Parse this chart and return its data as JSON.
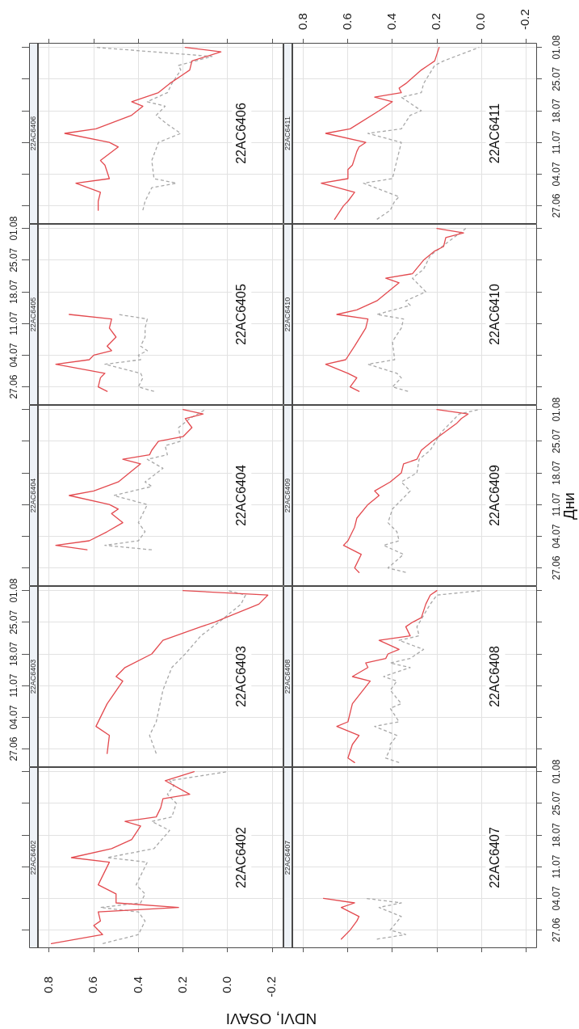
{
  "chart_data": [
    {
      "type": "line",
      "orientation": "horizontal",
      "title": "22AC6406",
      "annotations": [
        "22AC6406"
      ],
      "xlim": [
        0.85,
        -0.25
      ],
      "xticks": [
        {
          "value": 0.8,
          "label": null
        },
        {
          "value": 0.6,
          "label": null
        },
        {
          "value": 0.4,
          "label": null
        },
        {
          "value": 0.2,
          "label": null
        },
        {
          "value": 0,
          "label": null
        },
        {
          "value": -0.2,
          "label": null
        }
      ],
      "ylim": [
        "--06-23",
        "--08-02"
      ],
      "yticks": [
        {
          "value": "--06-27",
          "label": null
        },
        {
          "value": "--07-04",
          "label": null
        },
        {
          "value": "--07-11",
          "label": null
        },
        {
          "value": "--07-18",
          "label": null
        },
        {
          "value": "--07-25",
          "label": null
        },
        {
          "value": "--08-01",
          "label": null
        }
      ],
      "grid": true,
      "tick_labels": false,
      "series": [
        {
          "color": "#e34a4f",
          "x": [
            "--06-26",
            "--06-28",
            "--06-30",
            "--07-02",
            "--07-03",
            "--07-06",
            "--07-07",
            "--07-10",
            "--07-11",
            "--07-13",
            "--07-14",
            "--07-17",
            "--07-19",
            "--07-20",
            "--07-22",
            "--07-24",
            "--07-26",
            "--07-27",
            "--07-29",
            "--07-31",
            "--08-01"
          ],
          "values": [
            0.58,
            0.58,
            0.57,
            0.68,
            0.53,
            0.55,
            0.57,
            0.49,
            0.53,
            0.73,
            0.59,
            0.43,
            0.38,
            0.43,
            0.31,
            0.26,
            0.2,
            0.17,
            0.16,
            0.03,
            0.19
          ]
        },
        {
          "color": "#a8a8a8",
          "line_style": "dashed",
          "x": [
            "--06-26",
            "--06-28",
            "--07-01",
            "--07-02",
            "--07-03",
            "--07-07",
            "--07-11",
            "--07-13",
            "--07-15",
            "--07-17",
            "--07-19",
            "--07-20",
            "--07-22",
            "--07-24",
            "--07-27",
            "--07-28",
            "--07-30",
            "--08-01"
          ],
          "values": [
            0.38,
            0.37,
            0.34,
            0.23,
            0.33,
            0.34,
            0.31,
            0.21,
            0.27,
            0.32,
            0.28,
            0.36,
            0.27,
            0.25,
            0.21,
            0.22,
            0.07,
            0.59
          ]
        }
      ]
    },
    {
      "type": "line",
      "orientation": "horizontal",
      "title": "22AC6411",
      "annotations": [
        "22AC6411"
      ],
      "xlim": [
        0.85,
        -0.25
      ],
      "xticks": [
        0.8,
        0.6,
        0.4,
        0.2,
        {
          "value": 0,
          "label": "0.0"
        },
        -0.2
      ],
      "ylim": [
        "--06-23",
        "--08-02"
      ],
      "yticks": [
        {
          "value": "--06-27",
          "label": "27.06"
        },
        {
          "value": "--07-04",
          "label": "04.07"
        },
        {
          "value": "--07-11",
          "label": "11.07"
        },
        {
          "value": "--07-18",
          "label": "18.07"
        },
        {
          "value": "--07-25",
          "label": "25.07"
        },
        {
          "value": "--08-01",
          "label": "01.08"
        }
      ],
      "grid": true,
      "series": [
        {
          "color": "#e34a4f",
          "x": [
            "--06-24",
            "--06-27",
            "--06-28",
            "--06-30",
            "--07-02",
            "--07-03",
            "--07-05",
            "--07-06",
            "--07-09",
            "--07-10",
            "--07-11",
            "--07-13",
            "--07-14",
            "--07-18",
            "--07-20",
            "--07-21",
            "--07-22",
            "--07-23",
            "--07-24",
            "--07-27",
            "--07-28",
            "--07-29",
            "--08-01"
          ],
          "values": [
            0.66,
            0.62,
            0.6,
            0.57,
            0.72,
            0.6,
            0.6,
            0.58,
            0.56,
            0.55,
            0.52,
            0.7,
            0.59,
            0.46,
            0.4,
            0.48,
            0.36,
            0.37,
            0.34,
            0.27,
            0.24,
            0.21,
            0.19
          ]
        },
        {
          "color": "#a8a8a8",
          "line_style": "dashed",
          "x": [
            "--06-24",
            "--06-26",
            "--06-28",
            "--06-29",
            "--07-02",
            "--07-03",
            "--07-05",
            "--07-09",
            "--07-11",
            "--07-13",
            "--07-14",
            "--07-17",
            "--07-18",
            "--07-21",
            "--07-22",
            "--07-24",
            "--07-28",
            "--07-29",
            "--08-01"
          ],
          "values": [
            0.47,
            0.41,
            0.39,
            0.37,
            0.53,
            0.4,
            0.39,
            0.37,
            0.36,
            0.51,
            0.36,
            0.32,
            0.27,
            0.36,
            0.27,
            0.26,
            0.21,
            0.17,
            0.01
          ]
        }
      ]
    },
    {
      "type": "line",
      "orientation": "horizontal",
      "title": "22AC6405",
      "annotations": [
        "22AC6405"
      ],
      "xlim": [
        0.85,
        -0.25
      ],
      "xticks": [
        {
          "value": 0.8,
          "label": null
        },
        {
          "value": 0.6,
          "label": null
        },
        {
          "value": 0.4,
          "label": null
        },
        {
          "value": 0.2,
          "label": null
        },
        {
          "value": 0,
          "label": null
        },
        {
          "value": -0.2,
          "label": null
        }
      ],
      "ylim": [
        "--06-23",
        "--08-02"
      ],
      "yticks": [
        {
          "value": "--06-27",
          "label": "27.06"
        },
        {
          "value": "--07-04",
          "label": "04.07"
        },
        {
          "value": "--07-11",
          "label": "11.07"
        },
        {
          "value": "--07-18",
          "label": "18.07"
        },
        {
          "value": "--07-25",
          "label": "25.07"
        },
        {
          "value": "--08-01",
          "label": "01.08"
        }
      ],
      "grid": true,
      "tick_labels": "y",
      "series": [
        {
          "color": "#e34a4f",
          "x": [
            "--06-26",
            "--06-27",
            "--06-29",
            "--06-30",
            "--07-02",
            "--07-03",
            "--07-04",
            "--07-05",
            "--07-06",
            "--07-08",
            "--07-10",
            "--07-12",
            "--07-13"
          ],
          "values": [
            0.54,
            0.58,
            0.57,
            0.55,
            0.77,
            0.62,
            0.6,
            0.52,
            0.54,
            0.5,
            0.53,
            0.52,
            0.71
          ]
        },
        {
          "color": "#a8a8a8",
          "line_style": "dashed",
          "x": [
            "--06-26",
            "--06-27",
            "--06-29",
            "--06-30",
            "--07-02",
            "--07-03",
            "--07-04",
            "--07-05",
            "--07-06",
            "--07-08",
            "--07-10",
            "--07-12",
            "--07-13"
          ],
          "values": [
            0.33,
            0.4,
            0.38,
            0.39,
            0.55,
            0.39,
            0.4,
            0.36,
            0.39,
            0.37,
            0.37,
            0.36,
            0.49
          ]
        }
      ]
    },
    {
      "type": "line",
      "orientation": "horizontal",
      "title": "22AC6410",
      "annotations": [
        "22AC6410"
      ],
      "xlim": [
        0.85,
        -0.25
      ],
      "xticks": [
        {
          "value": 0.8,
          "label": null
        },
        {
          "value": 0.6,
          "label": null
        },
        {
          "value": 0.4,
          "label": null
        },
        {
          "value": 0.2,
          "label": null
        },
        {
          "value": 0,
          "label": null
        },
        {
          "value": -0.2,
          "label": null
        }
      ],
      "ylim": [
        "--06-23",
        "--08-02"
      ],
      "yticks": [
        {
          "value": "--06-27",
          "label": null
        },
        {
          "value": "--07-04",
          "label": null
        },
        {
          "value": "--07-11",
          "label": null
        },
        {
          "value": "--07-18",
          "label": null
        },
        {
          "value": "--07-25",
          "label": null
        },
        {
          "value": "--08-01",
          "label": null
        }
      ],
      "grid": true,
      "tick_labels": false,
      "series": [
        {
          "color": "#e34a4f",
          "x": [
            "--06-26",
            "--06-27",
            "--06-29",
            "--06-30",
            "--07-02",
            "--07-03",
            "--07-06",
            "--07-10",
            "--07-12",
            "--07-13",
            "--07-14",
            "--07-16",
            "--07-18",
            "--07-20",
            "--07-21",
            "--07-22",
            "--07-25",
            "--07-27",
            "--07-28",
            "--07-30",
            "--07-31",
            "--08-01"
          ],
          "values": [
            0.55,
            0.59,
            0.56,
            0.6,
            0.7,
            0.61,
            0.57,
            0.52,
            0.51,
            0.65,
            0.56,
            0.47,
            0.42,
            0.37,
            0.43,
            0.31,
            0.26,
            0.21,
            0.17,
            0.16,
            0.08,
            0.2
          ]
        },
        {
          "color": "#a8a8a8",
          "line_style": "dashed",
          "x": [
            "--06-26",
            "--06-27",
            "--06-29",
            "--06-30",
            "--07-02",
            "--07-03",
            "--07-07",
            "--07-10",
            "--07-12",
            "--07-13",
            "--07-15",
            "--07-16",
            "--07-18",
            "--07-21",
            "--07-23",
            "--07-26",
            "--07-29",
            "--08-01"
          ],
          "values": [
            0.33,
            0.4,
            0.36,
            0.38,
            0.51,
            0.39,
            0.4,
            0.36,
            0.35,
            0.47,
            0.32,
            0.34,
            0.25,
            0.31,
            0.26,
            0.23,
            0.15,
            0.07
          ]
        }
      ]
    },
    {
      "type": "line",
      "orientation": "horizontal",
      "title": "22AC6404",
      "annotations": [
        "22AC6404"
      ],
      "xlim": [
        0.85,
        -0.25
      ],
      "xticks": [
        {
          "value": 0.8,
          "label": null
        },
        {
          "value": 0.6,
          "label": null
        },
        {
          "value": 0.4,
          "label": null
        },
        {
          "value": 0.2,
          "label": null
        },
        {
          "value": 0,
          "label": null
        },
        {
          "value": -0.2,
          "label": null
        }
      ],
      "ylim": [
        "--06-23",
        "--08-02"
      ],
      "yticks": [
        {
          "value": "--06-27",
          "label": null
        },
        {
          "value": "--07-04",
          "label": null
        },
        {
          "value": "--07-11",
          "label": null
        },
        {
          "value": "--07-18",
          "label": null
        },
        {
          "value": "--07-25",
          "label": null
        },
        {
          "value": "--08-01",
          "label": null
        }
      ],
      "grid": true,
      "tick_labels": false,
      "series": [
        {
          "color": "#e34a4f",
          "x": [
            "--07-01",
            "--07-02",
            "--07-03",
            "--07-05",
            "--07-07",
            "--07-09",
            "--07-10",
            "--07-11",
            "--07-13",
            "--07-14",
            "--07-16",
            "--07-18",
            "--07-20",
            "--07-21",
            "--07-22",
            "--07-23",
            "--07-25",
            "--07-26",
            "--07-28",
            "--07-30",
            "--07-31",
            "--08-01"
          ],
          "values": [
            0.63,
            0.77,
            0.62,
            0.54,
            0.47,
            0.52,
            0.49,
            0.53,
            0.71,
            0.6,
            0.49,
            0.44,
            0.39,
            0.47,
            0.35,
            0.34,
            0.31,
            0.2,
            0.16,
            0.19,
            0.11,
            0.2
          ]
        },
        {
          "color": "#a8a8a8",
          "line_style": "dashed",
          "x": [
            "--07-01",
            "--07-02",
            "--07-03",
            "--07-05",
            "--07-07",
            "--07-09",
            "--07-11",
            "--07-13",
            "--07-15",
            "--07-16",
            "--07-19",
            "--07-21",
            "--07-22",
            "--07-24",
            "--07-25",
            "--07-28",
            "--07-30",
            "--08-01"
          ],
          "values": [
            0.34,
            0.55,
            0.4,
            0.37,
            0.4,
            0.38,
            0.36,
            0.51,
            0.34,
            0.37,
            0.29,
            0.36,
            0.27,
            0.28,
            0.21,
            0.22,
            0.17,
            0.1
          ]
        }
      ]
    },
    {
      "type": "line",
      "orientation": "horizontal",
      "title": "22AC6409",
      "annotations": [
        "22AC6409"
      ],
      "ylabel": "Дни",
      "xlim": [
        0.85,
        -0.25
      ],
      "xticks": [
        {
          "value": 0.8,
          "label": null
        },
        {
          "value": 0.6,
          "label": null
        },
        {
          "value": 0.4,
          "label": null
        },
        {
          "value": 0.2,
          "label": null
        },
        {
          "value": 0,
          "label": null
        },
        {
          "value": -0.2,
          "label": null
        }
      ],
      "ylim": [
        "--06-23",
        "--08-02"
      ],
      "yticks": [
        {
          "value": "--06-27",
          "label": "27.06"
        },
        {
          "value": "--07-04",
          "label": "04.07"
        },
        {
          "value": "--07-11",
          "label": "11.07"
        },
        {
          "value": "--07-18",
          "label": "18.07"
        },
        {
          "value": "--07-25",
          "label": "25.07"
        },
        {
          "value": "--08-01",
          "label": "01.08"
        }
      ],
      "grid": true,
      "tick_labels": "y",
      "series": [
        {
          "color": "#e34a4f",
          "x": [
            "--06-26",
            "--06-27",
            "--06-30",
            "--07-02",
            "--07-03",
            "--07-06",
            "--07-08",
            "--07-11",
            "--07-13",
            "--07-14",
            "--07-16",
            "--07-18",
            "--07-20",
            "--07-21",
            "--07-23",
            "--07-25",
            "--07-29",
            "--07-30",
            "--07-31",
            "--08-01"
          ],
          "values": [
            0.55,
            0.57,
            0.54,
            0.62,
            0.6,
            0.57,
            0.56,
            0.51,
            0.46,
            0.48,
            0.41,
            0.36,
            0.35,
            0.29,
            0.27,
            0.22,
            0.11,
            0.09,
            0.06,
            0.2
          ]
        },
        {
          "color": "#a8a8a8",
          "line_style": "dashed",
          "x": [
            "--06-26",
            "--06-27",
            "--06-30",
            "--07-02",
            "--07-03",
            "--07-05",
            "--07-07",
            "--07-10",
            "--07-14",
            "--07-16",
            "--07-18",
            "--07-21",
            "--07-23",
            "--07-27",
            "--07-31",
            "--08-01"
          ],
          "values": [
            0.34,
            0.42,
            0.35,
            0.44,
            0.37,
            0.38,
            0.42,
            0.4,
            0.32,
            0.36,
            0.29,
            0.28,
            0.23,
            0.18,
            0.1,
            0.01
          ]
        }
      ]
    },
    {
      "type": "line",
      "orientation": "horizontal",
      "title": "22AC6403",
      "annotations": [
        "22AC6403"
      ],
      "xlim": [
        0.85,
        -0.25
      ],
      "xticks": [
        {
          "value": 0.8,
          "label": null
        },
        {
          "value": 0.6,
          "label": null
        },
        {
          "value": 0.4,
          "label": null
        },
        {
          "value": 0.2,
          "label": null
        },
        {
          "value": 0,
          "label": null
        },
        {
          "value": -0.2,
          "label": null
        }
      ],
      "ylim": [
        "--06-23",
        "--08-02"
      ],
      "yticks": [
        {
          "value": "--06-27",
          "label": "27.06"
        },
        {
          "value": "--07-04",
          "label": "04.07"
        },
        {
          "value": "--07-11",
          "label": "11.07"
        },
        {
          "value": "--07-18",
          "label": "18.07"
        },
        {
          "value": "--07-25",
          "label": "25.07"
        },
        {
          "value": "--08-01",
          "label": "01.08"
        }
      ],
      "grid": true,
      "tick_labels": "y",
      "series": [
        {
          "color": "#e34a4f",
          "x": [
            "--06-26",
            "--06-30",
            "--07-02",
            "--07-04",
            "--07-07",
            "--07-12",
            "--07-13",
            "--07-15",
            "--07-18",
            "--07-21",
            "--07-24",
            "--07-25",
            "--07-29",
            "--07-31",
            "--08-01"
          ],
          "values": [
            0.54,
            0.53,
            0.59,
            0.57,
            0.54,
            0.47,
            0.5,
            0.46,
            0.34,
            0.29,
            0.12,
            0.06,
            -0.14,
            -0.18,
            0.2
          ]
        },
        {
          "color": "#a8a8a8",
          "line_style": "dashed",
          "x": [
            "--06-26",
            "--06-30",
            "--07-03",
            "--07-10",
            "--07-15",
            "--07-18",
            "--07-22",
            "--07-25",
            "--07-29",
            "--07-31",
            "--08-01"
          ],
          "values": [
            0.32,
            0.35,
            0.32,
            0.29,
            0.25,
            0.19,
            0.12,
            0.04,
            -0.06,
            -0.08,
            0.0
          ]
        }
      ]
    },
    {
      "type": "line",
      "orientation": "horizontal",
      "title": "22AC6408",
      "annotations": [
        "22AC6408"
      ],
      "xlim": [
        0.85,
        -0.25
      ],
      "xticks": [
        {
          "value": 0.8,
          "label": null
        },
        {
          "value": 0.6,
          "label": null
        },
        {
          "value": 0.4,
          "label": null
        },
        {
          "value": 0.2,
          "label": null
        },
        {
          "value": 0,
          "label": null
        },
        {
          "value": -0.2,
          "label": null
        }
      ],
      "ylim": [
        "--06-23",
        "--08-02"
      ],
      "yticks": [
        {
          "value": "--06-27",
          "label": null
        },
        {
          "value": "--07-04",
          "label": null
        },
        {
          "value": "--07-11",
          "label": null
        },
        {
          "value": "--07-18",
          "label": null
        },
        {
          "value": "--07-25",
          "label": null
        },
        {
          "value": "--08-01",
          "label": null
        }
      ],
      "grid": true,
      "tick_labels": false,
      "series": [
        {
          "color": "#e34a4f",
          "x": [
            "--06-24",
            "--06-25",
            "--06-28",
            "--06-30",
            "--07-02",
            "--07-03",
            "--07-07",
            "--07-12",
            "--07-13",
            "--07-15",
            "--07-16",
            "--07-17",
            "--07-18",
            "--07-19",
            "--07-21",
            "--07-22",
            "--07-24",
            "--07-25",
            "--07-26",
            "--07-29",
            "--07-31",
            "--08-01"
          ],
          "values": [
            0.57,
            0.6,
            0.58,
            0.55,
            0.65,
            0.6,
            0.58,
            0.5,
            0.58,
            0.51,
            0.52,
            0.43,
            0.42,
            0.37,
            0.46,
            0.32,
            0.34,
            0.31,
            0.27,
            0.25,
            0.23,
            0.2
          ]
        },
        {
          "color": "#a8a8a8",
          "line_style": "dashed",
          "x": [
            "--06-24",
            "--06-25",
            "--06-27",
            "--06-28",
            "--06-30",
            "--07-02",
            "--07-03",
            "--07-06",
            "--07-07",
            "--07-10",
            "--07-12",
            "--07-13",
            "--07-15",
            "--07-16",
            "--07-17",
            "--07-19",
            "--07-21",
            "--07-22",
            "--07-24",
            "--07-29",
            "--07-31",
            "--08-01"
          ],
          "values": [
            0.37,
            0.43,
            0.41,
            0.41,
            0.38,
            0.48,
            0.37,
            0.41,
            0.36,
            0.41,
            0.38,
            0.44,
            0.32,
            0.41,
            0.32,
            0.26,
            0.37,
            0.28,
            0.29,
            0.23,
            0.2,
            0.0
          ]
        }
      ]
    },
    {
      "type": "line",
      "orientation": "horizontal",
      "title": "22AC6402",
      "annotations": [
        "22AC6402"
      ],
      "xlabel": "NDVI, OSAVI",
      "xlim": [
        0.85,
        -0.25
      ],
      "xticks": [
        0.8,
        0.6,
        0.4,
        0.2,
        {
          "value": 0,
          "label": "0.0"
        },
        -0.2
      ],
      "ylim": [
        "--06-23",
        "--08-02"
      ],
      "yticks": [
        {
          "value": "--06-27",
          "label": null
        },
        {
          "value": "--07-04",
          "label": null
        },
        {
          "value": "--07-11",
          "label": null
        },
        {
          "value": "--07-18",
          "label": null
        },
        {
          "value": "--07-25",
          "label": null
        },
        {
          "value": "--08-01",
          "label": null
        }
      ],
      "grid": true,
      "tick_labels": "x",
      "series": [
        {
          "color": "#e34a4f",
          "x": [
            "--06-24",
            "--06-26",
            "--06-28",
            "--06-29",
            "--07-01",
            "--07-02",
            "--07-03",
            "--07-05",
            "--07-07",
            "--07-12",
            "--07-13",
            "--07-15",
            "--07-17",
            "--07-20",
            "--07-21",
            "--07-22",
            "--07-24",
            "--07-26",
            "--07-27",
            "--07-30",
            "--08-01"
          ],
          "values": [
            0.79,
            0.56,
            0.6,
            0.57,
            0.58,
            0.22,
            0.5,
            0.5,
            0.58,
            0.53,
            0.7,
            0.52,
            0.43,
            0.39,
            0.46,
            0.32,
            0.3,
            0.29,
            0.17,
            0.28,
            0.15
          ]
        },
        {
          "color": "#a8a8a8",
          "line_style": "dashed",
          "x": [
            "--06-24",
            "--06-26",
            "--06-29",
            "--07-01",
            "--07-02",
            "--07-03",
            "--07-05",
            "--07-07",
            "--07-12",
            "--07-13",
            "--07-15",
            "--07-19",
            "--07-21",
            "--07-22",
            "--07-25",
            "--07-27",
            "--07-29",
            "--07-30",
            "--08-01"
          ],
          "values": [
            0.56,
            0.4,
            0.37,
            0.4,
            0.57,
            0.39,
            0.37,
            0.41,
            0.36,
            0.54,
            0.33,
            0.26,
            0.34,
            0.25,
            0.23,
            0.27,
            0.24,
            0.26,
            0.0
          ]
        }
      ]
    },
    {
      "type": "line",
      "orientation": "horizontal",
      "title": "22AC6407",
      "annotations": [
        "22AC6407"
      ],
      "xlim": [
        0.85,
        -0.25
      ],
      "xticks": [
        {
          "value": 0.8,
          "label": null
        },
        {
          "value": 0.6,
          "label": null
        },
        {
          "value": 0.4,
          "label": null
        },
        {
          "value": 0.2,
          "label": null
        },
        {
          "value": 0,
          "label": null
        },
        {
          "value": -0.2,
          "label": null
        }
      ],
      "ylim": [
        "--06-23",
        "--08-02"
      ],
      "yticks": [
        {
          "value": "--06-27",
          "label": "27.06"
        },
        {
          "value": "--07-04",
          "label": "04.07"
        },
        {
          "value": "--07-11",
          "label": "11.07"
        },
        {
          "value": "--07-18",
          "label": "18.07"
        },
        {
          "value": "--07-25",
          "label": "25.07"
        },
        {
          "value": "--08-01",
          "label": "01.08"
        }
      ],
      "grid": true,
      "tick_labels": "y",
      "series": [
        {
          "color": "#e34a4f",
          "x": [
            "--06-25",
            "--06-27",
            "--06-29",
            "--06-30",
            "--07-02",
            "--07-03",
            "--07-04"
          ],
          "values": [
            0.63,
            0.59,
            0.56,
            0.55,
            0.63,
            0.57,
            0.71
          ]
        },
        {
          "color": "#a8a8a8",
          "line_style": "dashed",
          "x": [
            "--06-25",
            "--06-26",
            "--06-27",
            "--06-30",
            "--07-02",
            "--07-03",
            "--07-04"
          ],
          "values": [
            0.47,
            0.34,
            0.41,
            0.36,
            0.46,
            0.36,
            0.52
          ]
        }
      ]
    }
  ]
}
